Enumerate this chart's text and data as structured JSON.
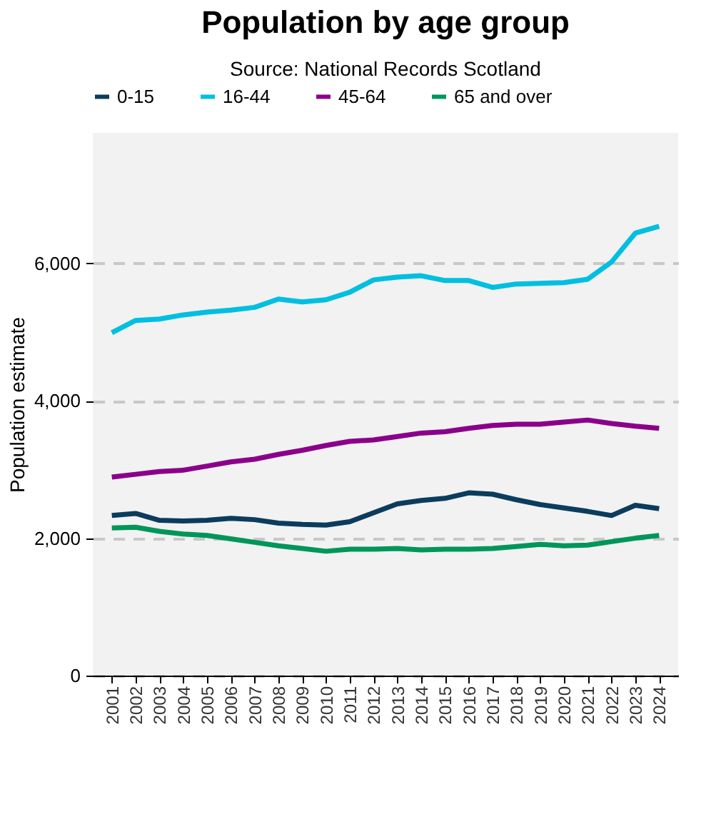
{
  "chart_data": {
    "type": "line",
    "title": "Population by age group",
    "subtitle": "Source: National Records Scotland",
    "ylabel": "Population estimate",
    "categories": [
      "2001",
      "2002",
      "2003",
      "2004",
      "2005",
      "2006",
      "2007",
      "2008",
      "2009",
      "2010",
      "2011",
      "2012",
      "2013",
      "2014",
      "2015",
      "2016",
      "2017",
      "2018",
      "2019",
      "2020",
      "2021",
      "2022",
      "2023",
      "2024"
    ],
    "series": [
      {
        "name": "0-15",
        "color": "#0b3c5d",
        "values": [
          2330,
          2360,
          2260,
          2250,
          2260,
          2290,
          2270,
          2220,
          2200,
          2190,
          2240,
          2370,
          2500,
          2550,
          2580,
          2660,
          2640,
          2560,
          2490,
          2440,
          2390,
          2330,
          2480,
          2430
        ]
      },
      {
        "name": "16-44",
        "color": "#00bfe0",
        "values": [
          4990,
          5170,
          5190,
          5250,
          5290,
          5320,
          5360,
          5480,
          5440,
          5470,
          5580,
          5760,
          5800,
          5820,
          5750,
          5750,
          5650,
          5700,
          5710,
          5720,
          5770,
          6020,
          6440,
          6540
        ]
      },
      {
        "name": "45-64",
        "color": "#8b008b",
        "values": [
          2890,
          2930,
          2970,
          2990,
          3050,
          3110,
          3150,
          3220,
          3280,
          3350,
          3410,
          3430,
          3480,
          3530,
          3550,
          3600,
          3640,
          3660,
          3660,
          3690,
          3720,
          3670,
          3630,
          3600
        ]
      },
      {
        "name": "65 and over",
        "color": "#00965a",
        "values": [
          2150,
          2160,
          2100,
          2060,
          2040,
          1990,
          1940,
          1890,
          1850,
          1810,
          1840,
          1840,
          1850,
          1830,
          1840,
          1840,
          1850,
          1880,
          1910,
          1890,
          1900,
          1950,
          2000,
          2040
        ]
      }
    ],
    "ylim": [
      0,
      7900
    ],
    "yticks": [
      0,
      {
        "value": 2000,
        "label": "2,000"
      },
      {
        "value": 4000,
        "label": "4,000"
      },
      {
        "value": 6000,
        "label": "6,000"
      }
    ],
    "grid": "y",
    "legend": "top",
    "marker": "none",
    "line_style": "solid"
  }
}
